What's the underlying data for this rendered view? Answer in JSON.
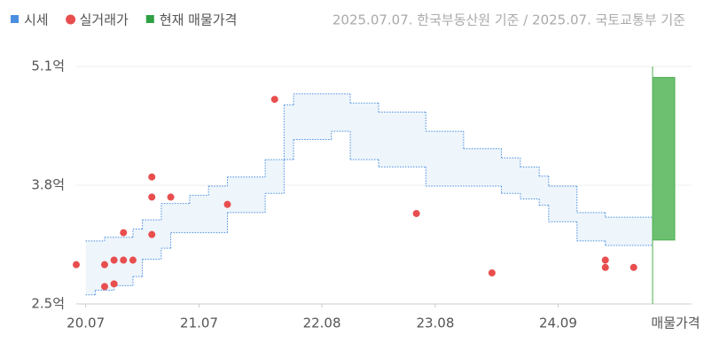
{
  "chart_data": {
    "type": "step",
    "source": "2025.07.07. 한국부동산원 기준 / 2025.07. 국토교통부 기준",
    "xlim": [
      "20.06",
      "25.07"
    ],
    "xticks": [
      "20.07",
      "21.07",
      "22.08",
      "23.08",
      "24.09"
    ],
    "ylim": [
      2.5,
      5.1
    ],
    "yticks": [
      {
        "value": 2.5,
        "label": "2.5억"
      },
      {
        "value": 3.8,
        "label": "3.8억"
      },
      {
        "value": 5.1,
        "label": "5.1억"
      }
    ],
    "grid": true,
    "series": [
      {
        "name": "시세",
        "kind": "band",
        "color": "#4a8fe0",
        "fill": "#eef5fb",
        "x": [
          "20.07",
          "20.09",
          "20.12",
          "21.01",
          "21.03",
          "21.06",
          "21.08",
          "21.10",
          "22.02",
          "22.04",
          "22.05",
          "22.11",
          "23.02",
          "23.07",
          "23.11",
          "24.03",
          "24.05",
          "24.07",
          "24.08",
          "24.11",
          "25.02"
        ],
        "values": [
          3.19,
          3.23,
          3.32,
          3.42,
          3.6,
          3.69,
          3.79,
          3.89,
          4.08,
          4.68,
          4.8,
          4.7,
          4.6,
          4.39,
          4.2,
          4.1,
          4.0,
          3.9,
          3.79,
          3.5,
          3.45
        ],
        "low_x": [
          "20.07",
          "20.08",
          "20.10",
          "20.12",
          "21.01",
          "21.03",
          "21.04",
          "21.10",
          "22.02",
          "22.04",
          "22.05",
          "22.09",
          "22.11",
          "23.02",
          "23.07",
          "24.03",
          "24.05",
          "24.07",
          "24.08",
          "24.11",
          "25.02"
        ],
        "low_values": [
          2.6,
          2.65,
          2.7,
          2.8,
          2.99,
          3.11,
          3.28,
          3.5,
          3.71,
          4.08,
          4.3,
          4.39,
          4.08,
          4.0,
          3.79,
          3.71,
          3.65,
          3.58,
          3.4,
          3.19,
          3.14
        ]
      },
      {
        "name": "실거래가",
        "kind": "scatter",
        "color": "#e84e4e",
        "x": [
          "20.06",
          "20.09",
          "20.09",
          "20.10",
          "20.10",
          "20.11",
          "20.11",
          "20.12",
          "21.02",
          "21.02",
          "21.02",
          "21.04",
          "21.10",
          "22.03",
          "23.06",
          "24.02",
          "25.02",
          "25.02",
          "25.05"
        ],
        "values": [
          2.93,
          2.93,
          2.69,
          2.98,
          2.72,
          2.98,
          3.28,
          2.98,
          3.26,
          3.89,
          3.67,
          3.67,
          3.59,
          4.74,
          3.49,
          2.84,
          2.98,
          2.9,
          2.9
        ]
      },
      {
        "name": "현재 매물가격",
        "kind": "range",
        "color": "#6cc070",
        "category": "매물가격",
        "values": [
          3.2,
          4.98
        ]
      }
    ]
  }
}
